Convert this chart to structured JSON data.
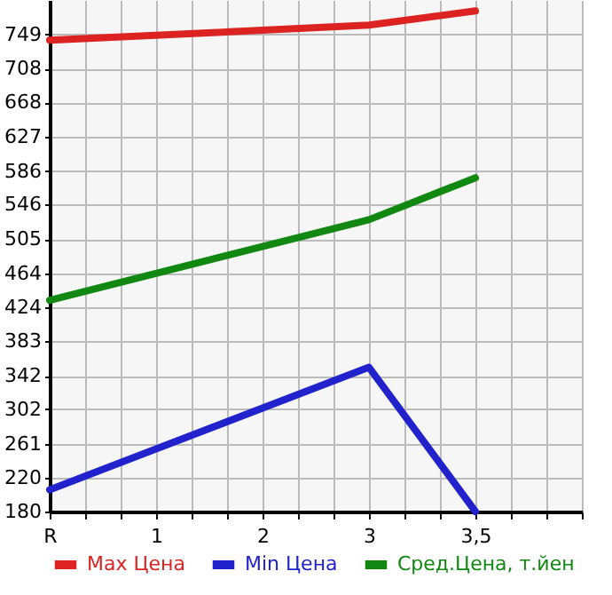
{
  "chart_data": {
    "type": "line",
    "categories": [
      "R",
      "1",
      "2",
      "3",
      "3,5"
    ],
    "series": [
      {
        "name": "Max Цена",
        "color": "#dd2222",
        "x": [
          "R",
          "3",
          "3,5"
        ],
        "values": [
          742,
          760,
          777
        ]
      },
      {
        "name": "Min Цена",
        "color": "#2222cc",
        "x": [
          "R",
          "3",
          "3,5"
        ],
        "values": [
          206,
          352,
          180
        ]
      },
      {
        "name": "Сред.Цена, т.йен",
        "color": "#118811",
        "x": [
          "R",
          "3",
          "3,5"
        ],
        "values": [
          432,
          528,
          578
        ]
      }
    ],
    "ylim": [
      180,
      790
    ],
    "yticks": [
      180,
      220,
      261,
      302,
      342,
      383,
      424,
      464,
      505,
      546,
      586,
      627,
      668,
      708,
      749
    ],
    "grid": true,
    "legend": "bottom"
  }
}
